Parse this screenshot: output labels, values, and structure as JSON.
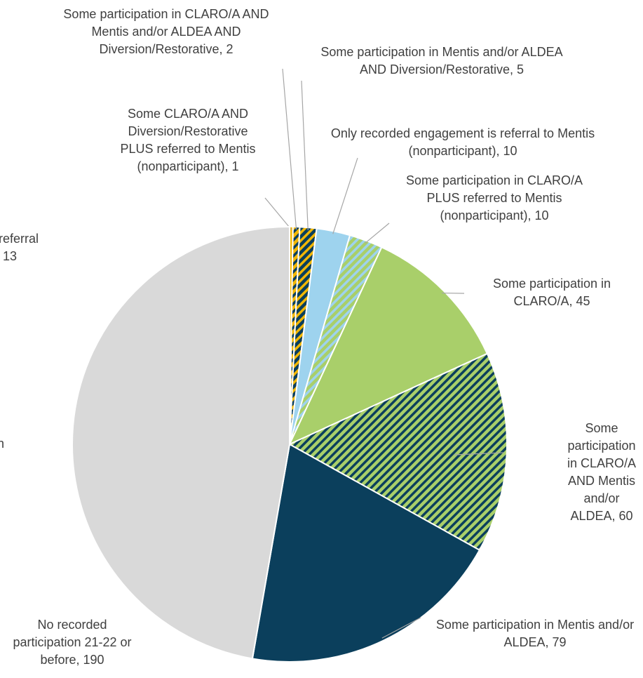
{
  "chart_data": {
    "type": "pie",
    "labels": [
      "Some CLARO/A AND Diversion/Restorative PLUS referred to Mentis (nonparticipant), 1",
      "Some participation in CLARO/A AND Mentis and/or ALDEA AND Diversion/Restorative, 2",
      "Some participation in Mentis and/or ALDEA AND Diversion/Restorative, 5",
      "Only recorded engagement is referral to Mentis (nonparticipant), 10",
      "Some participation in CLARO/A PLUS referred to Mentis (nonparticipant), 10",
      "Some participation in CLARO/A, 45",
      "Some participation in CLARO/A AND Mentis and/or ALDEA, 60",
      "Some participation in Mentis and/or ALDEA, 79",
      "No recorded participation 21-22 or before, 190"
    ],
    "values": [
      1,
      2,
      5,
      10,
      10,
      45,
      60,
      79,
      190
    ],
    "colors": [
      "#f2b705",
      "#f2b705",
      "#0b3f5c",
      "#9ed3ee",
      "#a9cf6a",
      "#a9cf6a",
      "#a9cf6a",
      "#0b3f5c",
      "#d9d9d9"
    ],
    "hatch": [
      null,
      "#0b3f5c",
      "#f2b705",
      null,
      "#9ed3ee",
      null,
      "#0b3f5c",
      null,
      null
    ],
    "annotations": [
      "referral",
      ", 13",
      "n"
    ]
  }
}
